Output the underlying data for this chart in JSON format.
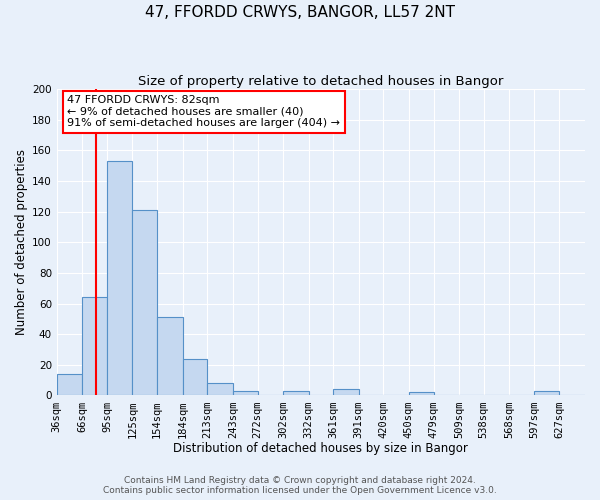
{
  "title": "47, FFORDD CRWYS, BANGOR, LL57 2NT",
  "subtitle": "Size of property relative to detached houses in Bangor",
  "xlabel": "Distribution of detached houses by size in Bangor",
  "ylabel": "Number of detached properties",
  "bar_labels": [
    "36sqm",
    "66sqm",
    "95sqm",
    "125sqm",
    "154sqm",
    "184sqm",
    "213sqm",
    "243sqm",
    "272sqm",
    "302sqm",
    "332sqm",
    "361sqm",
    "391sqm",
    "420sqm",
    "450sqm",
    "479sqm",
    "509sqm",
    "538sqm",
    "568sqm",
    "597sqm",
    "627sqm"
  ],
  "bar_heights": [
    14,
    64,
    153,
    121,
    51,
    24,
    8,
    3,
    0,
    3,
    0,
    4,
    0,
    0,
    2,
    0,
    0,
    0,
    0,
    3,
    0
  ],
  "bar_edges": [
    36,
    66,
    95,
    125,
    154,
    184,
    213,
    243,
    272,
    302,
    332,
    361,
    391,
    420,
    450,
    479,
    509,
    538,
    568,
    597,
    627,
    657
  ],
  "bar_color": "#c5d8f0",
  "bar_edge_color": "#5590c8",
  "red_line_x": 82,
  "ylim": [
    0,
    200
  ],
  "yticks": [
    0,
    20,
    40,
    60,
    80,
    100,
    120,
    140,
    160,
    180,
    200
  ],
  "annotation_line1": "47 FFORDD CRWYS: 82sqm",
  "annotation_line2": "← 9% of detached houses are smaller (40)",
  "annotation_line3": "91% of semi-detached houses are larger (404) →",
  "footer_line1": "Contains HM Land Registry data © Crown copyright and database right 2024.",
  "footer_line2": "Contains public sector information licensed under the Open Government Licence v3.0.",
  "background_color": "#e8f0fa",
  "grid_color": "#ffffff",
  "title_fontsize": 11,
  "subtitle_fontsize": 9.5,
  "axis_label_fontsize": 8.5,
  "tick_fontsize": 7.5,
  "annotation_fontsize": 8,
  "footer_fontsize": 6.5
}
